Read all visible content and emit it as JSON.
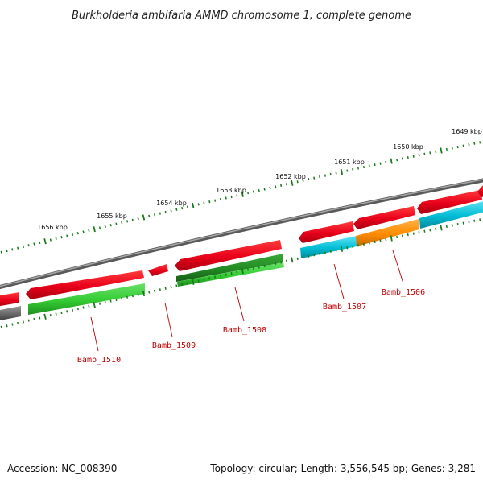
{
  "title": "Burkholderia ambifaria AMMD chromosome 1, complete genome",
  "footer": {
    "accession": "Accession: NC_008390",
    "summary": "Topology: circular; Length: 3,556,545 bp; Genes: 3,281"
  },
  "ticks": [
    {
      "label": "1649 kbp",
      "kbp": 1649
    },
    {
      "label": "1650 kbp",
      "kbp": 1650
    },
    {
      "label": "1651 kbp",
      "kbp": 1651
    },
    {
      "label": "1652 kbp",
      "kbp": 1652
    },
    {
      "label": "1653 kbp",
      "kbp": 1653
    },
    {
      "label": "1654 kbp",
      "kbp": 1654
    },
    {
      "label": "1655 kbp",
      "kbp": 1655
    },
    {
      "label": "1656 kbp",
      "kbp": 1656
    }
  ],
  "genes": [
    {
      "label": "Bamb_1506"
    },
    {
      "label": "Bamb_1507"
    },
    {
      "label": "Bamb_1508"
    },
    {
      "label": "Bamb_1509"
    },
    {
      "label": "Bamb_1510"
    }
  ],
  "colors": {
    "cds": "#e8001a",
    "cds_dark": "#a80010",
    "green": "#33cc33",
    "dark_green": "#228b22",
    "cyan": "#00bcd4",
    "orange": "#ff8c00",
    "gray": "#666666",
    "backbone": "#7a7a7a",
    "tick": "#1a7a1a",
    "label": "#c00000"
  }
}
